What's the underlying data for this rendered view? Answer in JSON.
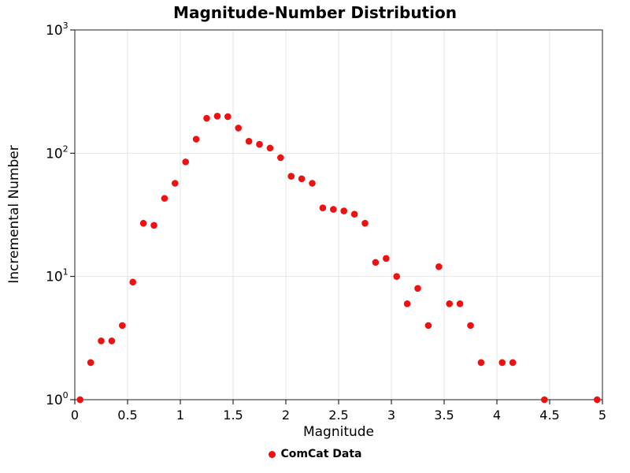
{
  "chart_data": {
    "type": "scatter",
    "title": "Magnitude-Number Distribution",
    "xlabel": "Magnitude",
    "ylabel": "Incremental Number",
    "legend": "ComCat Data",
    "legend_position": "bottom-center",
    "grid": true,
    "y_scale": "log10",
    "x_range": [
      0,
      5
    ],
    "y_range": [
      1,
      1000
    ],
    "x_ticks": [
      0,
      0.5,
      1,
      1.5,
      2,
      2.5,
      3,
      3.5,
      4,
      4.5,
      5
    ],
    "x_tick_labels": [
      "0",
      "0.5",
      "1",
      "1.5",
      "2",
      "2.5",
      "3",
      "3.5",
      "4",
      "4.5",
      "5"
    ],
    "y_ticks": [
      1,
      10,
      100,
      1000
    ],
    "y_tick_base": "10",
    "y_tick_exponents": [
      "0",
      "1",
      "2",
      "3"
    ],
    "marker_color": "#ee1111",
    "grid_color": "#e4e4e4",
    "axis_color": "#000000",
    "series": [
      {
        "name": "ComCat Data",
        "points": [
          [
            0.05,
            1
          ],
          [
            0.15,
            2
          ],
          [
            0.25,
            3
          ],
          [
            0.35,
            3
          ],
          [
            0.45,
            4
          ],
          [
            0.55,
            9
          ],
          [
            0.65,
            27
          ],
          [
            0.75,
            26
          ],
          [
            0.85,
            43
          ],
          [
            0.95,
            57
          ],
          [
            1.05,
            85
          ],
          [
            1.15,
            130
          ],
          [
            1.25,
            192
          ],
          [
            1.35,
            200
          ],
          [
            1.45,
            198
          ],
          [
            1.55,
            160
          ],
          [
            1.65,
            125
          ],
          [
            1.75,
            118
          ],
          [
            1.85,
            110
          ],
          [
            1.95,
            92
          ],
          [
            2.05,
            65
          ],
          [
            2.15,
            62
          ],
          [
            2.25,
            57
          ],
          [
            2.35,
            36
          ],
          [
            2.45,
            35
          ],
          [
            2.55,
            34
          ],
          [
            2.65,
            32
          ],
          [
            2.75,
            27
          ],
          [
            2.85,
            13
          ],
          [
            2.95,
            14
          ],
          [
            3.05,
            10
          ],
          [
            3.15,
            6
          ],
          [
            3.25,
            8
          ],
          [
            3.35,
            4
          ],
          [
            3.45,
            12
          ],
          [
            3.55,
            6
          ],
          [
            3.65,
            6
          ],
          [
            3.75,
            4
          ],
          [
            3.85,
            2
          ],
          [
            4.05,
            2
          ],
          [
            4.15,
            2
          ],
          [
            4.45,
            1
          ],
          [
            4.95,
            1
          ]
        ]
      }
    ]
  }
}
